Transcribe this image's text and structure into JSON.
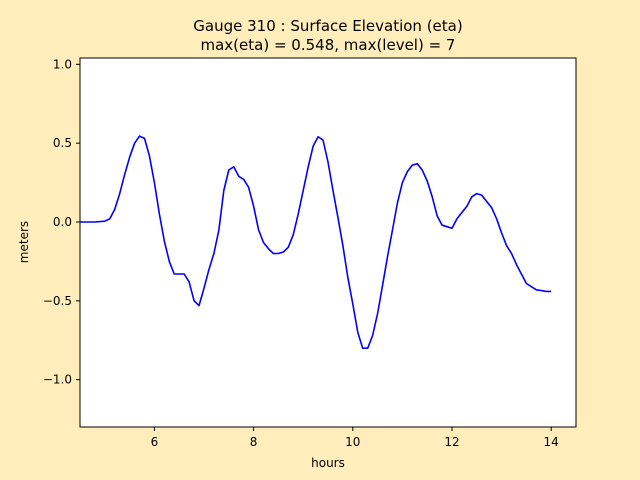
{
  "chart_data": {
    "type": "line",
    "title_line1": "Gauge 310 : Surface Elevation (eta)",
    "title_line2": "max(eta) =   0.548,    max(level) = 7",
    "xlabel": "hours",
    "ylabel": "meters",
    "xlim": [
      4.5,
      14.5
    ],
    "ylim": [
      -1.3,
      1.04
    ],
    "xticks": [
      6,
      8,
      10,
      12,
      14
    ],
    "xtick_labels": [
      "6",
      "8",
      "10",
      "12",
      "14"
    ],
    "yticks": [
      -1.0,
      -0.5,
      0.0,
      0.5,
      1.0
    ],
    "ytick_labels": [
      "−1.0",
      "−0.5",
      "0.0",
      "0.5",
      "1.0"
    ],
    "grid": false,
    "series": [
      {
        "color": "#0000ff",
        "x": [
          4.5,
          4.8,
          5.0,
          5.1,
          5.2,
          5.3,
          5.4,
          5.5,
          5.6,
          5.7,
          5.8,
          5.9,
          6.0,
          6.1,
          6.2,
          6.3,
          6.4,
          6.5,
          6.6,
          6.7,
          6.8,
          6.9,
          7.0,
          7.1,
          7.2,
          7.3,
          7.4,
          7.5,
          7.6,
          7.7,
          7.8,
          7.9,
          8.0,
          8.1,
          8.2,
          8.3,
          8.4,
          8.5,
          8.6,
          8.7,
          8.8,
          8.9,
          9.0,
          9.1,
          9.2,
          9.3,
          9.4,
          9.5,
          9.6,
          9.7,
          9.8,
          9.9,
          10.0,
          10.1,
          10.2,
          10.3,
          10.4,
          10.5,
          10.6,
          10.7,
          10.8,
          10.9,
          11.0,
          11.1,
          11.2,
          11.3,
          11.4,
          11.5,
          11.6,
          11.7,
          11.8,
          11.9,
          12.0,
          12.1,
          12.2,
          12.3,
          12.4,
          12.5,
          12.6,
          12.7,
          12.8,
          12.9,
          13.0,
          13.1,
          13.2,
          13.3,
          13.4,
          13.5,
          13.6,
          13.7,
          13.8,
          13.9,
          14.0
        ],
        "y": [
          0.0,
          0.0,
          0.005,
          0.02,
          0.08,
          0.18,
          0.3,
          0.41,
          0.5,
          0.545,
          0.53,
          0.42,
          0.25,
          0.05,
          -0.12,
          -0.25,
          -0.33,
          -0.33,
          -0.33,
          -0.38,
          -0.5,
          -0.53,
          -0.42,
          -0.3,
          -0.2,
          -0.05,
          0.2,
          0.33,
          0.35,
          0.29,
          0.27,
          0.22,
          0.1,
          -0.05,
          -0.13,
          -0.17,
          -0.2,
          -0.2,
          -0.19,
          -0.16,
          -0.08,
          0.05,
          0.2,
          0.35,
          0.48,
          0.54,
          0.52,
          0.38,
          0.2,
          0.03,
          -0.15,
          -0.35,
          -0.52,
          -0.7,
          -0.8,
          -0.8,
          -0.72,
          -0.58,
          -0.4,
          -0.22,
          -0.05,
          0.12,
          0.25,
          0.32,
          0.36,
          0.37,
          0.33,
          0.26,
          0.16,
          0.04,
          -0.02,
          -0.03,
          -0.04,
          0.02,
          0.06,
          0.1,
          0.16,
          0.18,
          0.17,
          0.13,
          0.09,
          0.02,
          -0.07,
          -0.15,
          -0.2,
          -0.27,
          -0.33,
          -0.39,
          -0.41,
          -0.43,
          -0.435,
          -0.44,
          -0.44
        ]
      }
    ]
  }
}
